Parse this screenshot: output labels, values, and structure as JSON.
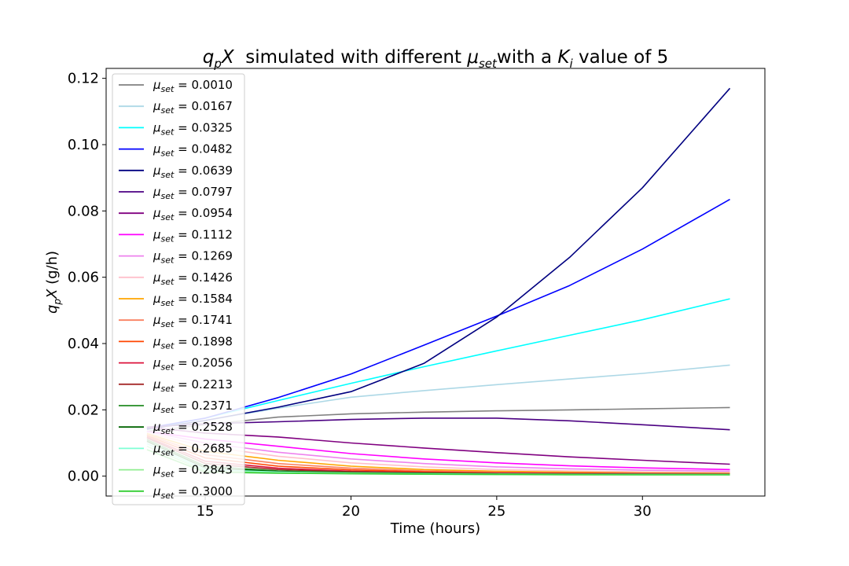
{
  "chart_data": {
    "type": "line",
    "title": {
      "a": "q",
      "a_sub": "p",
      "b": "X",
      "c": "  simulated with different ",
      "d": "μ",
      "d_sub": "set",
      "e": "with a ",
      "f": "K",
      "f_sub": "i",
      "g": " value of 5"
    },
    "xlabel": "Time (hours)",
    "ylabel": {
      "a": "q",
      "a_sub": "p",
      "b": "X",
      "c": " (g/h)"
    },
    "xlim": [
      11.6,
      34.2
    ],
    "ylim": [
      -0.006,
      0.123
    ],
    "xticks": [
      15,
      20,
      25,
      30
    ],
    "yticks": [
      0.0,
      0.02,
      0.04,
      0.06,
      0.08,
      0.1,
      0.12
    ],
    "ytick_labels": [
      "0.00",
      "0.02",
      "0.04",
      "0.06",
      "0.08",
      "0.10",
      "0.12"
    ],
    "legend": {
      "placement": "upper-left",
      "prefix": "μ",
      "sub": "set",
      "eq": " = "
    },
    "grid": false,
    "series": [
      {
        "name": "0.0010",
        "color": "#808080",
        "x": [
          13.0,
          15,
          17.5,
          20,
          22.5,
          25,
          27.5,
          30,
          33
        ],
        "y": [
          0.0135,
          0.0155,
          0.0178,
          0.0188,
          0.0193,
          0.0197,
          0.02,
          0.0203,
          0.0207
        ]
      },
      {
        "name": "0.0167",
        "color": "#add8e6",
        "x": [
          13.0,
          15,
          17.5,
          20,
          22.5,
          25,
          27.5,
          30,
          33
        ],
        "y": [
          0.014,
          0.0168,
          0.0205,
          0.0238,
          0.0258,
          0.0276,
          0.0293,
          0.031,
          0.0335
        ]
      },
      {
        "name": "0.0325",
        "color": "#00ffff",
        "x": [
          13.0,
          15,
          17.5,
          20,
          22.5,
          25,
          27.5,
          30,
          33
        ],
        "y": [
          0.0143,
          0.0175,
          0.0228,
          0.028,
          0.033,
          0.0378,
          0.0425,
          0.0472,
          0.0535
        ]
      },
      {
        "name": "0.0482",
        "color": "#0000ff",
        "x": [
          13.0,
          15,
          17.5,
          20,
          22.5,
          25,
          27.5,
          30,
          33
        ],
        "y": [
          0.0145,
          0.0175,
          0.0237,
          0.0308,
          0.0395,
          0.0483,
          0.0575,
          0.0685,
          0.0835
        ]
      },
      {
        "name": "0.0639",
        "color": "#000080",
        "x": [
          13.0,
          15,
          17.5,
          20,
          22.5,
          25,
          27.5,
          30,
          33
        ],
        "y": [
          0.0142,
          0.0168,
          0.0208,
          0.0255,
          0.034,
          0.048,
          0.066,
          0.087,
          0.117
        ]
      },
      {
        "name": "0.0797",
        "color": "#4b0082",
        "x": [
          13.0,
          15,
          17.5,
          20,
          22.5,
          25,
          27.5,
          30,
          33
        ],
        "y": [
          0.0148,
          0.0158,
          0.0164,
          0.0171,
          0.0175,
          0.0175,
          0.0167,
          0.0155,
          0.014
        ]
      },
      {
        "name": "0.0954",
        "color": "#800080",
        "x": [
          13.0,
          15,
          17.5,
          20,
          22.5,
          25,
          27.5,
          30,
          33
        ],
        "y": [
          0.0148,
          0.013,
          0.0118,
          0.01,
          0.0085,
          0.0071,
          0.0058,
          0.0048,
          0.0036
        ]
      },
      {
        "name": "0.1112",
        "color": "#ff00ff",
        "x": [
          13.0,
          15,
          17.5,
          20,
          22.5,
          25,
          27.5,
          30,
          33
        ],
        "y": [
          0.0135,
          0.0112,
          0.009,
          0.0068,
          0.0052,
          0.004,
          0.0031,
          0.0025,
          0.002
        ]
      },
      {
        "name": "0.1269",
        "color": "#ee82ee",
        "x": [
          13.0,
          15,
          17.5,
          20,
          22.5,
          25,
          27.5,
          30,
          33
        ],
        "y": [
          0.0135,
          0.01,
          0.0072,
          0.0052,
          0.0038,
          0.0028,
          0.0022,
          0.0018,
          0.0015
        ]
      },
      {
        "name": "0.1426",
        "color": "#ffc0cb",
        "x": [
          13.0,
          15,
          17.5,
          20,
          22.5,
          25,
          27.5,
          30,
          33
        ],
        "y": [
          0.013,
          0.009,
          0.006,
          0.004,
          0.0028,
          0.002,
          0.0016,
          0.0013,
          0.0011
        ]
      },
      {
        "name": "0.1584",
        "color": "#ffa500",
        "x": [
          13.0,
          15,
          17.5,
          20,
          22.5,
          25,
          27.5,
          30,
          33
        ],
        "y": [
          0.0128,
          0.0075,
          0.0048,
          0.003,
          0.002,
          0.0015,
          0.0012,
          0.001,
          0.0009
        ]
      },
      {
        "name": "0.1741",
        "color": "#fa8060",
        "x": [
          13.0,
          15,
          17.5,
          20,
          22.5,
          25,
          27.5,
          30,
          33
        ],
        "y": [
          0.0125,
          0.0065,
          0.0038,
          0.0024,
          0.0016,
          0.0012,
          0.001,
          0.0009,
          0.0008
        ]
      },
      {
        "name": "0.1898",
        "color": "#ff4500",
        "x": [
          13.0,
          15,
          17.5,
          20,
          22.5,
          25,
          27.5,
          30,
          33
        ],
        "y": [
          0.0122,
          0.0055,
          0.003,
          0.0019,
          0.0013,
          0.001,
          0.0009,
          0.0008,
          0.0007
        ]
      },
      {
        "name": "0.2056",
        "color": "#dc143c",
        "x": [
          13.0,
          15,
          17.5,
          20,
          22.5,
          25,
          27.5,
          30,
          33
        ],
        "y": [
          0.0118,
          0.0045,
          0.0024,
          0.0015,
          0.0011,
          0.0009,
          0.0008,
          0.0007,
          0.0006
        ]
      },
      {
        "name": "0.2213",
        "color": "#a52a2a",
        "x": [
          13.0,
          15,
          17.5,
          20,
          22.5,
          25,
          27.5,
          30,
          33
        ],
        "y": [
          0.0115,
          0.0038,
          0.002,
          0.0013,
          0.001,
          0.0008,
          0.0007,
          0.0006,
          0.0006
        ]
      },
      {
        "name": "0.2371",
        "color": "#228b22",
        "x": [
          13.0,
          15,
          17.5,
          20,
          22.5,
          25,
          27.5,
          30,
          33
        ],
        "y": [
          0.011,
          0.003,
          0.0016,
          0.0011,
          0.0009,
          0.0007,
          0.0006,
          0.0006,
          0.0005
        ]
      },
      {
        "name": "0.2528",
        "color": "#006400",
        "x": [
          13.0,
          15,
          17.5,
          20,
          22.5,
          25,
          27.5,
          30,
          33
        ],
        "y": [
          0.0105,
          0.0025,
          0.0014,
          0.001,
          0.0008,
          0.0006,
          0.0006,
          0.0005,
          0.0005
        ]
      },
      {
        "name": "0.2685",
        "color": "#7fffd4",
        "x": [
          13.0,
          15,
          17.5,
          20,
          22.5,
          25,
          27.5,
          30,
          33
        ],
        "y": [
          0.0098,
          0.002,
          0.0012,
          0.0009,
          0.0007,
          0.0006,
          0.0005,
          0.0005,
          0.0005
        ]
      },
      {
        "name": "0.2843",
        "color": "#90ee90",
        "x": [
          13.0,
          15,
          17.5,
          20,
          22.5,
          25,
          27.5,
          30,
          33
        ],
        "y": [
          0.009,
          0.0016,
          0.001,
          0.0008,
          0.0006,
          0.0005,
          0.0005,
          0.0004,
          0.0004
        ]
      },
      {
        "name": "0.3000",
        "color": "#32cd32",
        "x": [
          13.0,
          15,
          17.5,
          20,
          22.5,
          25,
          27.5,
          30,
          33
        ],
        "y": [
          0.008,
          0.0012,
          0.0009,
          0.0007,
          0.0006,
          0.0005,
          0.0004,
          0.0004,
          0.0004
        ]
      }
    ]
  }
}
